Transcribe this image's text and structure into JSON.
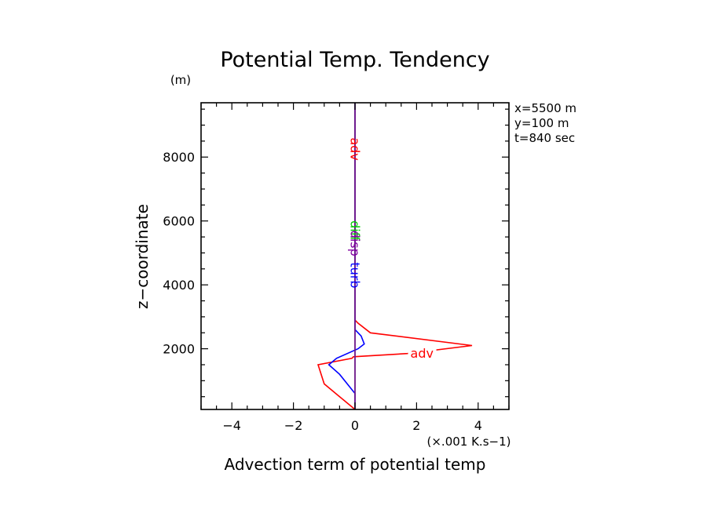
{
  "chart_data": {
    "type": "line",
    "title": "Potential Temp. Tendency",
    "xlabel": "Advection term of potential temp",
    "xunit": "(×.001 K.s−1)",
    "ylabel": "z−coordinate",
    "yunit": "(m)",
    "xlim": [
      -5,
      5
    ],
    "ylim": [
      100,
      9700
    ],
    "xticks": [
      -4,
      -2,
      0,
      2,
      4
    ],
    "xtick_labels": [
      "−4",
      "−2",
      "0",
      "2",
      "4"
    ],
    "yticks": [
      2000,
      4000,
      6000,
      8000
    ],
    "ytick_labels": [
      "2000",
      "4000",
      "6000",
      "8000"
    ],
    "grid": false,
    "info": [
      "x=5500 m",
      "y=100 m",
      "t=840 sec"
    ],
    "series": [
      {
        "name": "adv",
        "color": "#ff0000",
        "points": [
          [
            0.0,
            100
          ],
          [
            -0.5,
            500
          ],
          [
            -1.0,
            900
          ],
          [
            -1.2,
            1500
          ],
          [
            -0.1,
            1700
          ],
          [
            -0.05,
            1750
          ],
          [
            1.7,
            1850
          ],
          [
            3.8,
            2100
          ],
          [
            0.5,
            2500
          ],
          [
            0.1,
            2800
          ],
          [
            0.0,
            2900
          ],
          [
            0.0,
            9700
          ]
        ]
      },
      {
        "name": "turb",
        "color": "#0000ff",
        "points": [
          [
            0.0,
            100
          ],
          [
            0.0,
            600
          ],
          [
            -0.5,
            1200
          ],
          [
            -0.85,
            1500
          ],
          [
            -0.6,
            1700
          ],
          [
            0.1,
            2000
          ],
          [
            0.3,
            2150
          ],
          [
            0.2,
            2400
          ],
          [
            0.0,
            2600
          ],
          [
            0.0,
            9700
          ]
        ]
      },
      {
        "name": "diff",
        "color": "#00cc00",
        "points": [
          [
            0.0,
            100
          ],
          [
            0.0,
            9700
          ]
        ]
      },
      {
        "name": "disp",
        "color": "#8000a0",
        "points": [
          [
            0.0,
            100
          ],
          [
            0.0,
            9700
          ]
        ]
      }
    ],
    "annotations": [
      {
        "text": "adv",
        "color": "#ff0000",
        "x": 1.8,
        "y": 1850,
        "rotate": 0
      },
      {
        "text": "adv",
        "color": "#ff0000",
        "x": 0.0,
        "y": 8250,
        "rotate": 90
      },
      {
        "text": "diff",
        "color": "#00cc00",
        "x": 0.0,
        "y": 5700,
        "rotate": 90
      },
      {
        "text": "disp",
        "color": "#8000a0",
        "x": 0.0,
        "y": 5300,
        "rotate": 90
      },
      {
        "text": "turb",
        "color": "#0000ff",
        "x": 0.0,
        "y": 4300,
        "rotate": 90
      }
    ]
  }
}
